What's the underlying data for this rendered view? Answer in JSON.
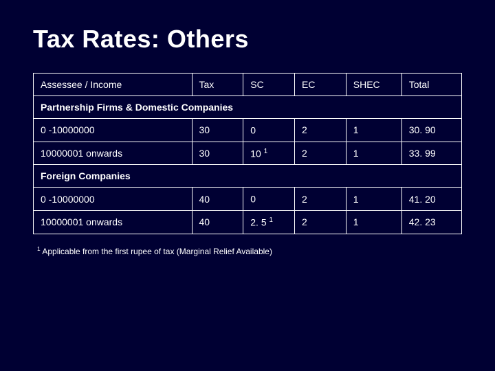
{
  "title": "Tax Rates: Others",
  "columns": [
    "Assessee / Income",
    "Tax",
    "SC",
    "EC",
    "SHEC",
    "Total"
  ],
  "sections": [
    {
      "heading": "Partnership Firms & Domestic Companies",
      "rows": [
        {
          "label": "0 -10000000",
          "tax": "30",
          "sc": "0",
          "sc_sup": "",
          "ec": "2",
          "shec": "1",
          "total": "30. 90"
        },
        {
          "label": "10000001 onwards",
          "tax": "30",
          "sc": "10 ",
          "sc_sup": "1",
          "ec": "2",
          "shec": "1",
          "total": "33. 99"
        }
      ]
    },
    {
      "heading": "Foreign Companies",
      "rows": [
        {
          "label": "0 -10000000",
          "tax": "40",
          "sc": "0",
          "sc_sup": "",
          "ec": "2",
          "shec": "1",
          "total": "41. 20"
        },
        {
          "label": "10000001 onwards",
          "tax": "40",
          "sc": "2. 5 ",
          "sc_sup": "1",
          "ec": "2",
          "shec": "1",
          "total": "42. 23"
        }
      ]
    }
  ],
  "footnote_marker": "1",
  "footnote_text": " Applicable from the first rupee of tax (Marginal Relief Available)",
  "colors": {
    "background": "#000033",
    "text": "#ffffff",
    "border": "#ffffff"
  }
}
